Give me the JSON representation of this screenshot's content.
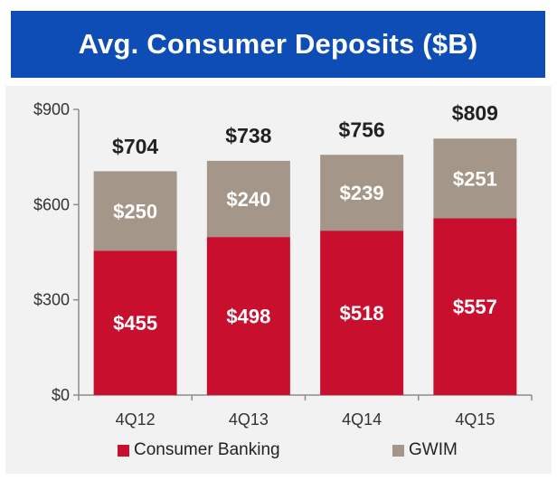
{
  "title": "Avg. Consumer Deposits ($B)",
  "colors": {
    "banner": "#0d4db5",
    "consumer_banking": "#c8102e",
    "gwim": "#a4978a",
    "panel": "#f2f2f2"
  },
  "chart_data": {
    "type": "bar",
    "stacked": true,
    "categories": [
      "4Q12",
      "4Q13",
      "4Q14",
      "4Q15"
    ],
    "series": [
      {
        "name": "Consumer Banking",
        "values": [
          455,
          498,
          518,
          557
        ],
        "labels": [
          "$455",
          "$498",
          "$518",
          "$557"
        ]
      },
      {
        "name": "GWIM",
        "values": [
          250,
          240,
          239,
          251
        ],
        "labels": [
          "$250",
          "$240",
          "$239",
          "$251"
        ]
      }
    ],
    "totals": [
      704,
      738,
      756,
      809
    ],
    "total_labels": [
      "$704",
      "$738",
      "$756",
      "$809"
    ],
    "ylim": [
      0,
      900
    ],
    "yticks": [
      0,
      300,
      600,
      900
    ],
    "ytick_labels": [
      "$0",
      "$300",
      "$600",
      "$900"
    ],
    "grid": false,
    "legend_position": "bottom"
  },
  "legend": {
    "consumer_banking": "Consumer Banking",
    "gwim": "GWIM"
  }
}
